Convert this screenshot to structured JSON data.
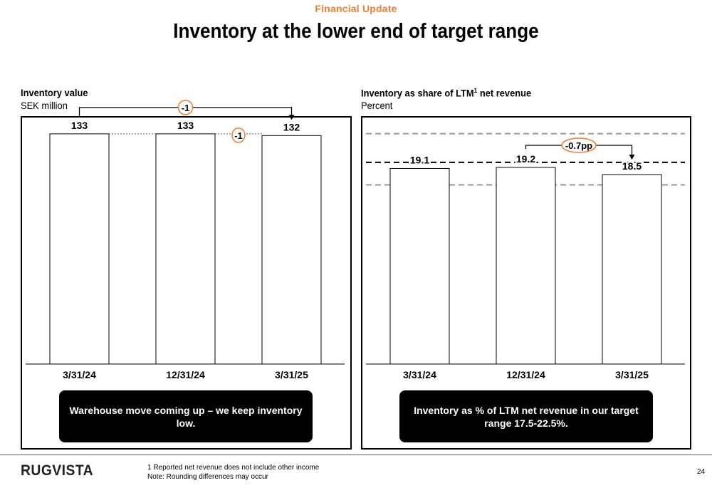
{
  "header": {
    "section_label": "Financial Update",
    "title": "Inventory at the lower end of target range"
  },
  "left_panel": {
    "title": "Inventory value",
    "subtitle": "SEK million",
    "callout": "Warehouse move coming up – we keep inventory low."
  },
  "right_panel": {
    "title_main": "Inventory as share of LTM",
    "title_sup": "1",
    "title_tail": " net revenue",
    "subtitle": "Percent",
    "callout": "Inventory as % of LTM net revenue in our target range 17.5-22.5%."
  },
  "chart_data": [
    {
      "type": "bar",
      "title": "Inventory value",
      "ylabel": "SEK million",
      "categories": [
        "3/31/24",
        "12/31/24",
        "3/31/25"
      ],
      "values": [
        133,
        133,
        132
      ],
      "data_labels": [
        "133",
        "133",
        "132"
      ],
      "ylim": [
        0,
        142
      ],
      "annotations": [
        {
          "from": "3/31/24",
          "to": "3/31/25",
          "label": "-1",
          "style": "bracket-arrow"
        },
        {
          "from": "12/31/24",
          "to": "3/31/25",
          "label": "-1",
          "style": "dotted-step"
        }
      ],
      "colors": {
        "bar_fill": "#ffffff",
        "bar_stroke": "#000000",
        "annotation": "#ED7D31"
      }
    },
    {
      "type": "bar",
      "title": "Inventory as share of LTM net revenue",
      "ylabel": "Percent",
      "categories": [
        "3/31/24",
        "12/31/24",
        "3/31/25"
      ],
      "values": [
        19.1,
        19.2,
        18.5
      ],
      "data_labels": [
        "19.1",
        "19.2",
        "18.5"
      ],
      "ylim": [
        0,
        24
      ],
      "reference_lines": [
        {
          "value": 22.5,
          "style": "dashed",
          "color": "#999999",
          "meaning": "target range upper"
        },
        {
          "value": 19.7,
          "style": "dashed",
          "color": "#000000"
        },
        {
          "value": 17.5,
          "style": "dashed",
          "color": "#999999",
          "meaning": "target range lower"
        }
      ],
      "annotations": [
        {
          "from": "12/31/24",
          "to": "3/31/25",
          "label": "-0.7pp",
          "style": "bracket-arrow"
        }
      ],
      "colors": {
        "bar_fill": "#ffffff",
        "bar_stroke": "#000000",
        "annotation": "#ED7D31"
      }
    }
  ],
  "footer": {
    "logo": "RUGVISTA",
    "footnote_1": "1 Reported net revenue does not include other income",
    "footnote_2": "Note: Rounding differences may occur",
    "page_number": "24"
  }
}
